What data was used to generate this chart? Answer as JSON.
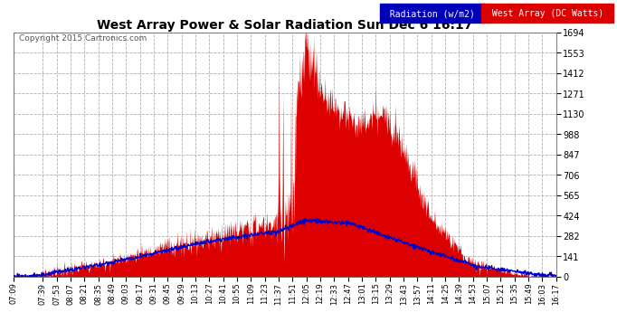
{
  "title": "West Array Power & Solar Radiation Sun Dec 6 16:17",
  "copyright": "Copyright 2015 Cartronics.com",
  "legend_radiation": "Radiation (w/m2)",
  "legend_west": "West Array (DC Watts)",
  "ylabel_right_ticks": [
    0.0,
    141.2,
    282.4,
    423.6,
    564.8,
    706.0,
    847.2,
    988.4,
    1129.5,
    1270.7,
    1411.9,
    1553.1,
    1694.3
  ],
  "ymax": 1694.3,
  "ymin": 0.0,
  "bg_color": "#ffffff",
  "plot_bg_color": "#ffffff",
  "grid_color": "#b0b0b0",
  "title_color": "#000000",
  "red_color": "#dd0000",
  "blue_color": "#0000cc",
  "x_labels": [
    "07:09",
    "07:39",
    "07:53",
    "08:07",
    "08:21",
    "08:35",
    "08:49",
    "09:03",
    "09:17",
    "09:31",
    "09:45",
    "09:59",
    "10:13",
    "10:27",
    "10:41",
    "10:55",
    "11:09",
    "11:23",
    "11:37",
    "11:51",
    "12:05",
    "12:19",
    "12:33",
    "12:47",
    "13:01",
    "13:15",
    "13:29",
    "13:43",
    "13:57",
    "14:11",
    "14:25",
    "14:39",
    "14:53",
    "15:07",
    "15:21",
    "15:35",
    "15:49",
    "16:03",
    "16:17"
  ]
}
